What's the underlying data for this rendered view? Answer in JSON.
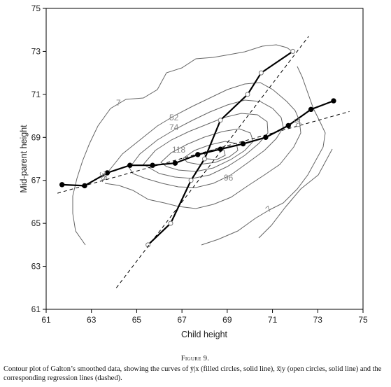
{
  "chart_data": {
    "type": "line",
    "xlabel": "Child height",
    "ylabel": "Mid-parent height",
    "xlim": [
      61,
      75
    ],
    "ylim": [
      61,
      75
    ],
    "x_ticks": [
      "61",
      "63",
      "65",
      "67",
      "69",
      "71",
      "73",
      "75"
    ],
    "y_ticks": [
      "61",
      "63",
      "65",
      "67",
      "69",
      "71",
      "73",
      "75"
    ],
    "grid": false,
    "series": [
      {
        "marker": "filled-circle",
        "style": "solid",
        "x": [
          61.7,
          62.7,
          63.7,
          64.7,
          65.7,
          66.7,
          67.7,
          68.7,
          69.7,
          70.7,
          71.7,
          72.7,
          73.7
        ],
        "y": [
          66.8,
          66.75,
          67.35,
          67.7,
          67.7,
          67.8,
          68.2,
          68.45,
          68.7,
          69.0,
          69.55,
          70.3,
          70.7
        ]
      },
      {
        "marker": "open-circle",
        "style": "solid",
        "x": [
          65.5,
          66.5,
          67.4,
          68.0,
          68.7,
          69.9,
          70.5,
          71.9
        ],
        "y": [
          64.0,
          65.0,
          67.0,
          68.0,
          69.8,
          71.0,
          72.0,
          73.0
        ]
      },
      {
        "style": "dashed",
        "x": [
          61.5,
          74.4
        ],
        "y": [
          66.4,
          70.2
        ]
      },
      {
        "style": "dashed",
        "x": [
          64.1,
          72.6
        ],
        "y": [
          62.0,
          73.7
        ]
      }
    ],
    "contour_labels": [
      "7",
      "52",
      "74",
      "118",
      "96",
      "7",
      "30",
      "30"
    ],
    "caption_title": "Figure 9.",
    "caption_text": "Contour plot of Galton’s smoothed data, showing the curves of ȳ|x (filled circles, solid line), x̄|y (open circles, solid line) and the corresponding regression lines (dashed).",
    "colors": {
      "data": "#000000",
      "contours": "#666666",
      "labels": "#888888"
    }
  }
}
